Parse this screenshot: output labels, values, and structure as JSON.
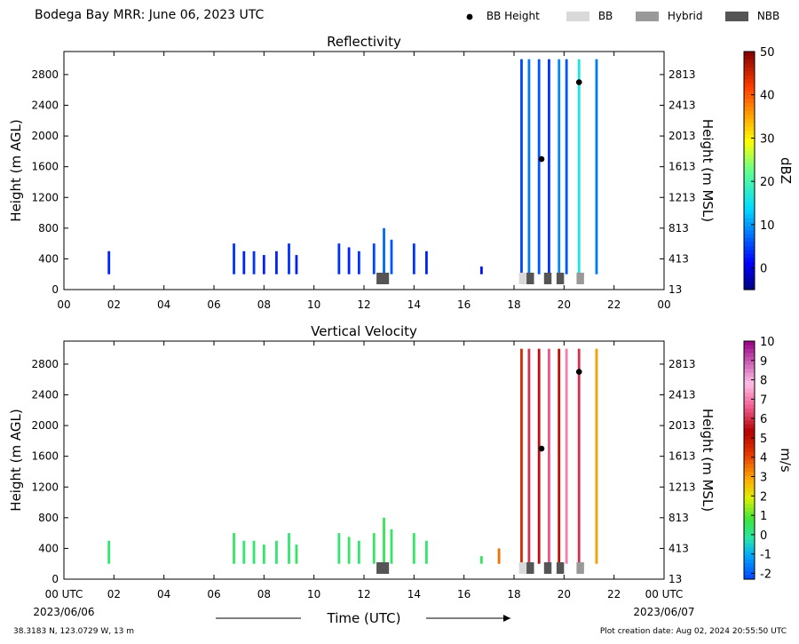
{
  "header": {
    "title": "Bodega Bay MRR:  June 06, 2023 UTC"
  },
  "legend": [
    {
      "label": "BB Height",
      "kind": "dot",
      "color": "#000000"
    },
    {
      "label": "BB",
      "kind": "patch",
      "color": "#d9d9d9"
    },
    {
      "label": "Hybrid",
      "kind": "patch",
      "color": "#999999"
    },
    {
      "label": "NBB",
      "kind": "patch",
      "color": "#555555"
    }
  ],
  "footer": {
    "location": "38.3183 N, 123.0729 W, 13 m",
    "created": "Plot creation date: Aug 02, 2024 20:55:50 UTC"
  },
  "chart_data": [
    {
      "type": "heatmap",
      "title": "Reflectivity",
      "ylabel": "Height (m AGL)",
      "y2label": "Height (m MSL)",
      "xlim": [
        0,
        24
      ],
      "ylim": [
        0,
        3100
      ],
      "xticks": [
        "00",
        "02",
        "04",
        "06",
        "08",
        "10",
        "12",
        "14",
        "16",
        "18",
        "20",
        "22",
        "00"
      ],
      "yticks": [
        0,
        400,
        800,
        1200,
        1600,
        2000,
        2400,
        2800
      ],
      "y2ticks": [
        "13",
        "413",
        "813",
        "1213",
        "1613",
        "2013",
        "2413",
        "2813"
      ],
      "colorbar": {
        "label": "dBZ",
        "range": [
          -5,
          50
        ],
        "ticks": [
          0,
          10,
          20,
          30,
          40,
          50
        ],
        "colormap": "jet"
      },
      "precip_columns": [
        {
          "x": 1.8,
          "top": 500,
          "value": 3
        },
        {
          "x": 6.8,
          "top": 600,
          "value": 4
        },
        {
          "x": 7.2,
          "top": 500,
          "value": 3
        },
        {
          "x": 7.6,
          "top": 500,
          "value": 4
        },
        {
          "x": 8.0,
          "top": 450,
          "value": 3
        },
        {
          "x": 8.5,
          "top": 500,
          "value": 3
        },
        {
          "x": 9.0,
          "top": 600,
          "value": 4
        },
        {
          "x": 9.3,
          "top": 450,
          "value": 3
        },
        {
          "x": 11.0,
          "top": 600,
          "value": 4
        },
        {
          "x": 11.4,
          "top": 550,
          "value": 3
        },
        {
          "x": 11.8,
          "top": 500,
          "value": 4
        },
        {
          "x": 12.4,
          "top": 600,
          "value": 5
        },
        {
          "x": 12.8,
          "top": 800,
          "value": 7
        },
        {
          "x": 13.1,
          "top": 650,
          "value": 6
        },
        {
          "x": 14.0,
          "top": 600,
          "value": 4
        },
        {
          "x": 14.5,
          "top": 500,
          "value": 3
        },
        {
          "x": 16.7,
          "top": 300,
          "value": 2
        },
        {
          "x": 18.3,
          "top": 3000,
          "value": 5
        },
        {
          "x": 18.6,
          "top": 3000,
          "value": 8
        },
        {
          "x": 19.0,
          "top": 3000,
          "value": 6
        },
        {
          "x": 19.4,
          "top": 3000,
          "value": 4
        },
        {
          "x": 19.8,
          "top": 3000,
          "value": 9
        },
        {
          "x": 20.1,
          "top": 3000,
          "value": 6
        },
        {
          "x": 20.6,
          "top": 3000,
          "value": 16
        },
        {
          "x": 21.3,
          "top": 3000,
          "value": 8
        }
      ],
      "bright_band_height": [
        {
          "x": 19.1,
          "y": 1700
        },
        {
          "x": 20.6,
          "y": 2700
        }
      ],
      "bb_classification": [
        {
          "start": 12.5,
          "end": 13.0,
          "class": "NBB"
        },
        {
          "start": 18.2,
          "end": 18.5,
          "class": "BB"
        },
        {
          "start": 18.5,
          "end": 18.8,
          "class": "NBB"
        },
        {
          "start": 19.2,
          "end": 19.5,
          "class": "NBB"
        },
        {
          "start": 19.7,
          "end": 20.0,
          "class": "NBB"
        },
        {
          "start": 20.5,
          "end": 20.8,
          "class": "Hybrid"
        }
      ]
    },
    {
      "type": "heatmap",
      "title": "Vertical Velocity",
      "ylabel": "Height (m AGL)",
      "y2label": "Height (m MSL)",
      "xlabel": "Time (UTC)",
      "xlim": [
        0,
        24
      ],
      "ylim": [
        0,
        3100
      ],
      "xticks": [
        "00 UTC",
        "02",
        "04",
        "06",
        "08",
        "10",
        "12",
        "14",
        "16",
        "18",
        "20",
        "22",
        "00 UTC"
      ],
      "x_start_date": "2023/06/06",
      "x_end_date": "2023/06/07",
      "yticks": [
        0,
        400,
        800,
        1200,
        1600,
        2000,
        2400,
        2800
      ],
      "y2ticks": [
        "13",
        "413",
        "813",
        "1213",
        "1613",
        "2013",
        "2413",
        "2813"
      ],
      "colorbar": {
        "label": "m/s",
        "range": [
          -2.3,
          10
        ],
        "ticks": [
          -2,
          -1,
          0,
          1,
          2,
          3,
          4,
          5,
          6,
          7,
          8,
          9,
          10
        ],
        "colormap": "velocity"
      },
      "precip_columns": [
        {
          "x": 1.8,
          "top": 500,
          "value": 0.3
        },
        {
          "x": 6.8,
          "top": 600,
          "value": 0.4
        },
        {
          "x": 7.2,
          "top": 500,
          "value": 0.3
        },
        {
          "x": 7.6,
          "top": 500,
          "value": 0.3
        },
        {
          "x": 8.0,
          "top": 450,
          "value": 0.4
        },
        {
          "x": 8.5,
          "top": 500,
          "value": 0.3
        },
        {
          "x": 9.0,
          "top": 600,
          "value": 0.3
        },
        {
          "x": 9.3,
          "top": 450,
          "value": 0.4
        },
        {
          "x": 11.0,
          "top": 600,
          "value": 0.3
        },
        {
          "x": 11.4,
          "top": 550,
          "value": 0.4
        },
        {
          "x": 11.8,
          "top": 500,
          "value": 0.3
        },
        {
          "x": 12.4,
          "top": 600,
          "value": 0.5
        },
        {
          "x": 12.8,
          "top": 800,
          "value": 0.6
        },
        {
          "x": 13.1,
          "top": 650,
          "value": 0.4
        },
        {
          "x": 14.0,
          "top": 600,
          "value": 0.4
        },
        {
          "x": 14.5,
          "top": 500,
          "value": 0.3
        },
        {
          "x": 16.7,
          "top": 300,
          "value": 0.5
        },
        {
          "x": 17.4,
          "top": 400,
          "value": 3.5
        },
        {
          "x": 18.3,
          "top": 3000,
          "value": 4.5
        },
        {
          "x": 18.6,
          "top": 3000,
          "value": 6.0
        },
        {
          "x": 19.0,
          "top": 3000,
          "value": 5.5
        },
        {
          "x": 19.4,
          "top": 3000,
          "value": 6.5
        },
        {
          "x": 19.8,
          "top": 3000,
          "value": 5.0
        },
        {
          "x": 20.1,
          "top": 3000,
          "value": 7.0
        },
        {
          "x": 20.6,
          "top": 3000,
          "value": 6.0
        },
        {
          "x": 21.3,
          "top": 3000,
          "value": 3.0
        }
      ],
      "bright_band_height": [
        {
          "x": 19.1,
          "y": 1700
        },
        {
          "x": 20.6,
          "y": 2700
        }
      ],
      "bb_classification": [
        {
          "start": 12.5,
          "end": 13.0,
          "class": "NBB"
        },
        {
          "start": 18.2,
          "end": 18.5,
          "class": "BB"
        },
        {
          "start": 18.5,
          "end": 18.8,
          "class": "NBB"
        },
        {
          "start": 19.2,
          "end": 19.5,
          "class": "NBB"
        },
        {
          "start": 19.7,
          "end": 20.0,
          "class": "NBB"
        },
        {
          "start": 20.5,
          "end": 20.8,
          "class": "Hybrid"
        }
      ]
    }
  ]
}
